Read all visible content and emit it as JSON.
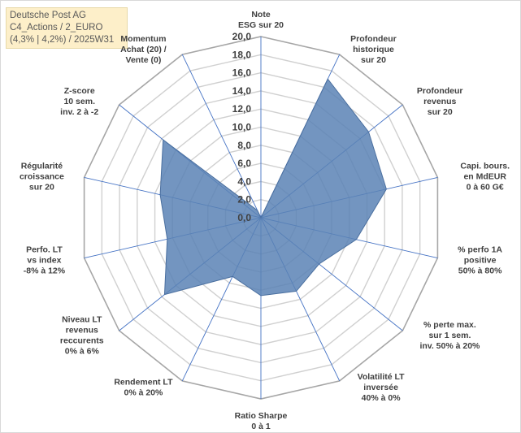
{
  "title_box": {
    "line1": "Deutsche Post AG",
    "line2": "C4_Actions / 2_EURO",
    "line3": "(4,3% | 4,2%) / 2025W31"
  },
  "chart_data": {
    "type": "radar",
    "range": [
      0,
      20
    ],
    "tick_step": 2,
    "tick_labels": [
      "0,0",
      "2,0",
      "4,0",
      "6,0",
      "8,0",
      "10,0",
      "12,0",
      "14,0",
      "16,0",
      "18,0",
      "20,0"
    ],
    "grid": true,
    "series_color": "#5b82b5",
    "axes": [
      {
        "label": [
          "Note",
          "ESG sur 20"
        ],
        "value": 0
      },
      {
        "label": [
          "Profondeur",
          "historique",
          "sur 20"
        ],
        "value": 17.0
      },
      {
        "label": [
          "Profondeur",
          "revenus",
          "sur 20"
        ],
        "value": 15.2
      },
      {
        "label": [
          "Capi. bours.",
          "en MdEUR",
          "0 à 60 G€"
        ],
        "value": 14.2
      },
      {
        "label": [
          "% perfo 1A",
          "positive",
          "50% à 80%"
        ],
        "value": 10.8
      },
      {
        "label": [
          "% perte max.",
          "sur 1 sem.",
          "inv. 50% à 20%"
        ],
        "value": 8.2
      },
      {
        "label": [
          "Volatilité LT",
          "inversée",
          "40% à 0%"
        ],
        "value": 9.0
      },
      {
        "label": [
          "Ratio Sharpe",
          "0 à 1"
        ],
        "value": 8.6
      },
      {
        "label": [
          "Rendement LT",
          "0% à 20%"
        ],
        "value": 7.2
      },
      {
        "label": [
          "Niveau LT",
          "revenus",
          "reccurents",
          "0% à 6%"
        ],
        "value": 13.6
      },
      {
        "label": [
          "Perfo. LT",
          "vs index",
          "-8% à 12%"
        ],
        "value": 10.6
      },
      {
        "label": [
          "Régularité",
          "croissance",
          "sur 20"
        ],
        "value": 11.4
      },
      {
        "label": [
          "Z-score",
          "10 sem.",
          "inv. 2 à -2"
        ],
        "value": 13.8
      },
      {
        "label": [
          "Momentum",
          "Achat (20) /",
          "Vente (0)"
        ],
        "value": 0.9
      }
    ]
  }
}
